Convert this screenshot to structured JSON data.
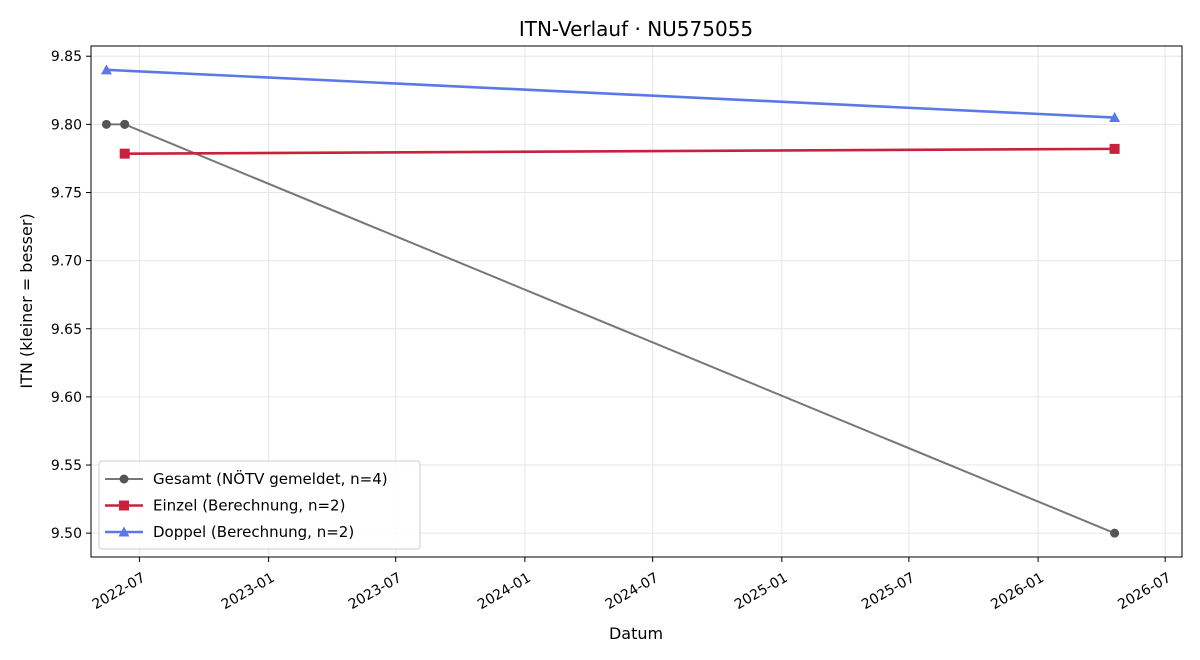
{
  "chart_data": {
    "type": "line",
    "title": "ITN-Verlauf · NU575055",
    "xlabel": "Datum",
    "ylabel": "ITN  (kleiner = besser)",
    "x_type": "date",
    "xlim": [
      "2022-04-23",
      "2026-07-25"
    ],
    "ylim": [
      9.4825,
      9.8575
    ],
    "x_ticks": [
      "2022-07",
      "2023-01",
      "2023-07",
      "2024-01",
      "2024-07",
      "2025-01",
      "2025-07",
      "2026-01",
      "2026-07"
    ],
    "y_ticks": [
      "9.50",
      "9.55",
      "9.60",
      "9.65",
      "9.70",
      "9.75",
      "9.80",
      "9.85"
    ],
    "grid": true,
    "legend_position": "lower-left",
    "series": [
      {
        "name": "Gesamt (NÖTV gemeldet, n=4)",
        "color": "#555555",
        "marker": "circle",
        "points": [
          {
            "x": "2022-05-15",
            "y": 9.8
          },
          {
            "x": "2022-06-10",
            "y": 9.8
          },
          {
            "x": "2022-06-10",
            "y": 9.8
          },
          {
            "x": "2026-04-20",
            "y": 9.5
          }
        ]
      },
      {
        "name": "Einzel (Berechnung, n=2)",
        "color": "#c8213d",
        "marker": "square",
        "points": [
          {
            "x": "2022-06-10",
            "y": 9.7785
          },
          {
            "x": "2026-04-20",
            "y": 9.782
          }
        ]
      },
      {
        "name": "Doppel (Berechnung, n=2)",
        "color": "#5a78e8",
        "marker": "triangle",
        "points": [
          {
            "x": "2022-05-15",
            "y": 9.84
          },
          {
            "x": "2026-04-20",
            "y": 9.805
          }
        ]
      }
    ]
  }
}
